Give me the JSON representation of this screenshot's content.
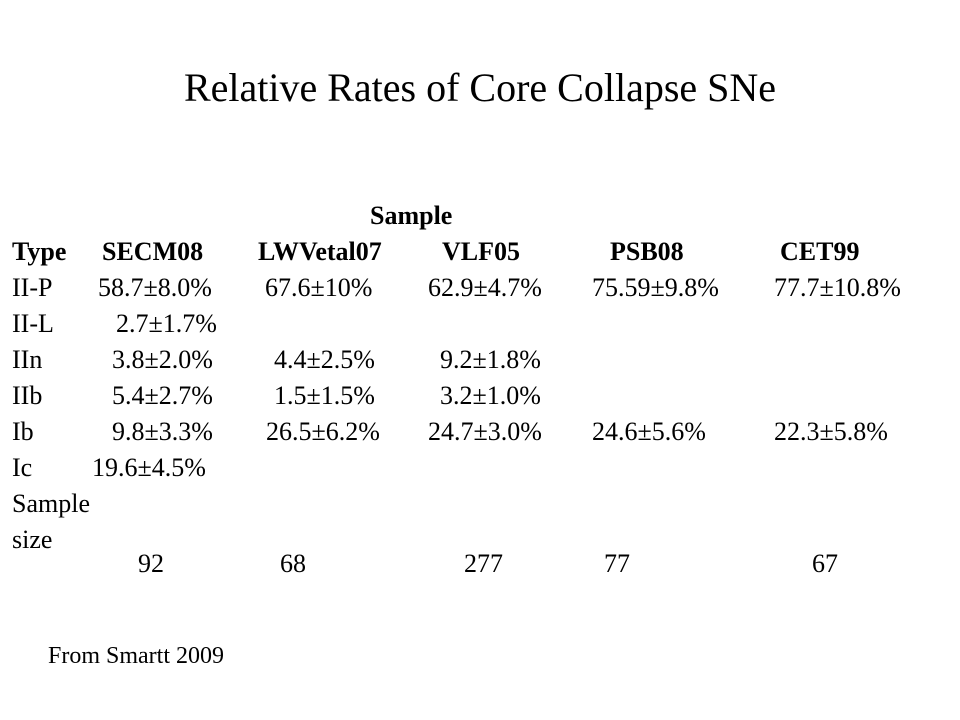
{
  "title": "Relative Rates of Core Collapse SNe",
  "table": {
    "group_header": "Sample",
    "columns": [
      "Type",
      "SECM08",
      "LWVetal07",
      "VLF05",
      "PSB08",
      "CET99"
    ],
    "rows": [
      {
        "type": "II-P",
        "values": [
          "58.7±8.0%",
          "67.6±10%",
          "62.9±4.7%",
          "75.59±9.8%",
          "77.7±10.8%"
        ]
      },
      {
        "type": "II-L",
        "values": [
          "2.7±1.7%",
          "",
          "",
          "",
          ""
        ]
      },
      {
        "type": "IIn",
        "values": [
          "3.8±2.0%",
          "4.4±2.5%",
          "9.2±1.8%",
          "",
          ""
        ]
      },
      {
        "type": "IIb",
        "values": [
          "5.4±2.7%",
          "1.5±1.5%",
          "3.2±1.0%",
          "",
          ""
        ]
      },
      {
        "type": "Ib",
        "values": [
          "9.8±3.3%",
          "26.5±6.2%",
          "24.7±3.0%",
          "24.6±5.6%",
          "22.3±5.8%"
        ]
      },
      {
        "type": "Ic",
        "values": [
          "19.6±4.5%",
          "",
          "",
          "",
          ""
        ]
      }
    ],
    "sample_size": {
      "label_line1": "Sample",
      "label_line2": "size",
      "values": [
        "92",
        "68",
        "277",
        "77",
        "67"
      ]
    }
  },
  "footer": "From Smartt 2009"
}
